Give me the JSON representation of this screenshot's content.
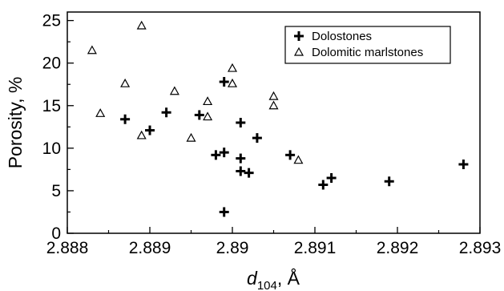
{
  "chart_data": {
    "type": "scatter",
    "xlabel_main": "d",
    "xlabel_sub": "104",
    "xlabel_unit": ", Å",
    "ylabel": "Porosity, %",
    "xlim": [
      2.888,
      2.893
    ],
    "ylim": [
      0,
      26
    ],
    "x_ticks": [
      2.888,
      2.889,
      2.89,
      2.891,
      2.892,
      2.893
    ],
    "x_tick_labels": [
      "2.888",
      "2.889",
      "2.89",
      "2.891",
      "2.892",
      "2.893"
    ],
    "y_ticks": [
      0,
      5,
      10,
      15,
      20,
      25
    ],
    "y_tick_labels": [
      "0",
      "5",
      "10",
      "15",
      "20",
      "25"
    ],
    "legend_position": "top-right",
    "grid": false,
    "series": [
      {
        "name": "Dolostones",
        "marker": "plus",
        "points": [
          [
            2.8887,
            13.4
          ],
          [
            2.889,
            12.1
          ],
          [
            2.8892,
            14.2
          ],
          [
            2.8896,
            13.9
          ],
          [
            2.8898,
            9.2
          ],
          [
            2.8899,
            17.8
          ],
          [
            2.8899,
            9.5
          ],
          [
            2.8899,
            2.5
          ],
          [
            2.8901,
            8.8
          ],
          [
            2.8901,
            7.3
          ],
          [
            2.8901,
            13.0
          ],
          [
            2.8902,
            7.1
          ],
          [
            2.8903,
            11.2
          ],
          [
            2.8907,
            9.2
          ],
          [
            2.8911,
            5.7
          ],
          [
            2.8912,
            6.5
          ],
          [
            2.8919,
            6.1
          ],
          [
            2.8928,
            8.1
          ]
        ]
      },
      {
        "name": "Dolomitic marlstones",
        "marker": "triangle",
        "points": [
          [
            2.8883,
            21.5
          ],
          [
            2.8884,
            14.1
          ],
          [
            2.8887,
            17.6
          ],
          [
            2.8889,
            24.4
          ],
          [
            2.8889,
            11.5
          ],
          [
            2.8893,
            16.7
          ],
          [
            2.8895,
            11.2
          ],
          [
            2.8897,
            15.5
          ],
          [
            2.8897,
            13.7
          ],
          [
            2.89,
            19.4
          ],
          [
            2.89,
            17.6
          ],
          [
            2.8905,
            16.1
          ],
          [
            2.8905,
            15.0
          ],
          [
            2.8908,
            8.6
          ]
        ]
      }
    ]
  }
}
